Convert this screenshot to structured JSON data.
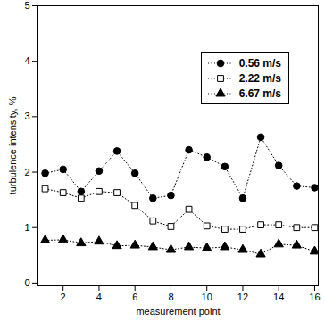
{
  "chart_data": {
    "type": "line",
    "x_label": "measurement point",
    "y_label": "turbulence intensity, %",
    "x": [
      1,
      2,
      3,
      4,
      5,
      6,
      7,
      8,
      9,
      10,
      11,
      12,
      13,
      14,
      15,
      16
    ],
    "series": [
      {
        "name": "0.56 m/s",
        "color": "#000000",
        "marker": "circle",
        "line_style": "dotted",
        "values": [
          1.98,
          2.05,
          1.65,
          2.02,
          2.38,
          1.98,
          1.53,
          1.58,
          2.4,
          2.27,
          2.1,
          1.53,
          2.63,
          2.12,
          1.75,
          1.72
        ]
      },
      {
        "name": "2.22 m/s",
        "color": "#000000",
        "marker": "square-open",
        "line_style": "dotted",
        "values": [
          1.7,
          1.63,
          1.53,
          1.65,
          1.63,
          1.4,
          1.12,
          1.02,
          1.33,
          1.03,
          0.97,
          0.97,
          1.05,
          1.05,
          1.0,
          1.0
        ]
      },
      {
        "name": "6.67 m/s",
        "color": "#000000",
        "marker": "triangle",
        "line_style": "dotted",
        "values": [
          0.77,
          0.78,
          0.72,
          0.75,
          0.67,
          0.68,
          0.65,
          0.6,
          0.65,
          0.63,
          0.65,
          0.6,
          0.52,
          0.7,
          0.68,
          0.57
        ]
      }
    ],
    "xlim": [
      0.6,
      16.2
    ],
    "xticks": [
      2,
      4,
      6,
      8,
      10,
      12,
      14,
      16
    ],
    "ylim": [
      -0.05,
      5
    ],
    "yticks": [
      0,
      1,
      2,
      3,
      4,
      5
    ],
    "grid": false,
    "legend": "upper right"
  }
}
